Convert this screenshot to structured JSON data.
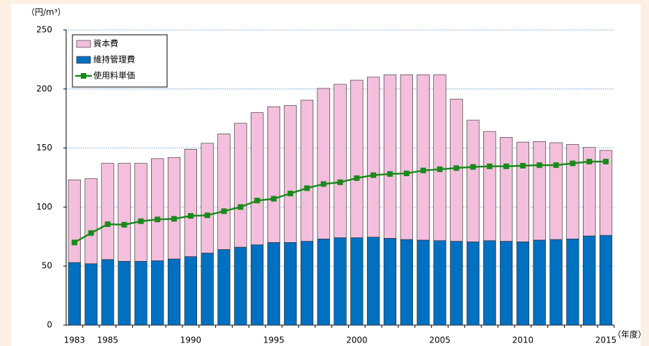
{
  "chart_data": {
    "type": "stacked_bar_line",
    "y_label": "（円/m³）",
    "x_label": "（年度）",
    "categories": [
      "1983",
      null,
      "1985",
      null,
      null,
      null,
      null,
      "1990",
      null,
      null,
      null,
      null,
      "1995",
      null,
      null,
      null,
      null,
      "2000",
      null,
      null,
      null,
      null,
      "2005",
      null,
      null,
      null,
      null,
      "2010",
      null,
      null,
      null,
      null,
      "2015"
    ],
    "series": [
      {
        "name": "資本費",
        "color": "#f3bfdd",
        "kind": "bar",
        "values": [
          70,
          72,
          81.5,
          83,
          83,
          86.5,
          86,
          91,
          93,
          98,
          105,
          112,
          115,
          116,
          119.5,
          127.5,
          130,
          133.5,
          135.5,
          138.5,
          139.5,
          140,
          140.5,
          120.5,
          103,
          92.5,
          88,
          84.5,
          83.5,
          82,
          80,
          75,
          72
        ]
      },
      {
        "name": "維持管理費",
        "color": "#0070c0",
        "kind": "bar",
        "values": [
          53,
          52,
          55.5,
          54,
          54,
          54.5,
          56,
          58,
          61,
          64,
          66,
          68,
          70,
          70,
          71,
          73,
          74,
          74,
          74.5,
          73.5,
          72.5,
          72,
          71.5,
          71,
          70.5,
          71.5,
          71,
          70.5,
          72,
          72.5,
          73,
          75.5,
          76
        ]
      },
      {
        "name": "使用料単価",
        "color": "#1a8a1a",
        "kind": "line",
        "values": [
          70,
          78,
          85.5,
          85,
          88,
          89.5,
          90,
          92.5,
          93,
          96.5,
          100,
          105.5,
          107,
          111.5,
          116,
          119.5,
          121,
          124.5,
          127,
          128,
          128.5,
          131,
          132,
          133,
          134,
          134.5,
          134.5,
          135,
          135.5,
          135.5,
          137,
          138.5,
          138.5
        ]
      }
    ],
    "ylim": [
      0,
      250
    ],
    "yticks": [
      0,
      50,
      100,
      150,
      200,
      250
    ],
    "grid": true
  }
}
